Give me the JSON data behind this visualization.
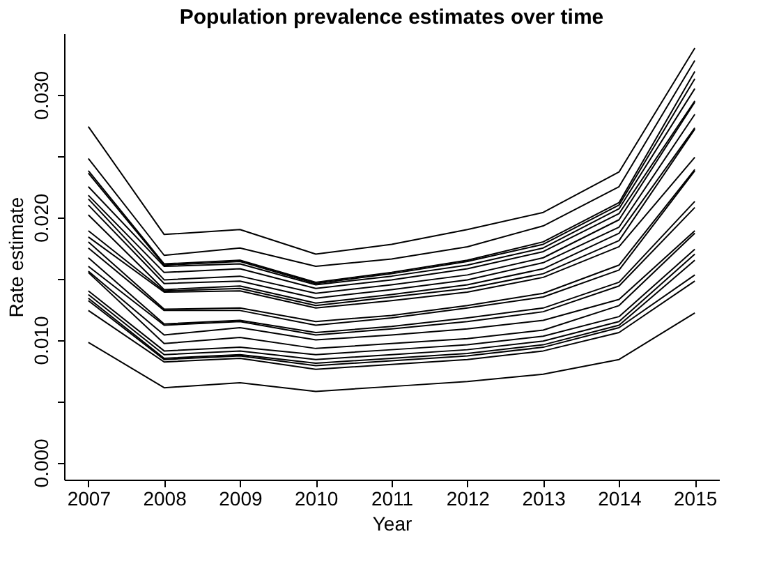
{
  "chart_data": {
    "type": "line",
    "title": "Population prevalence estimates over time",
    "xlabel": "Year",
    "ylabel": "Rate estimate",
    "x": [
      2007,
      2008,
      2009,
      2010,
      2011,
      2012,
      2013,
      2014,
      2015
    ],
    "xlim": [
      2006.68,
      2015.32
    ],
    "xticks": [
      2007,
      2008,
      2009,
      2010,
      2011,
      2012,
      2013,
      2014,
      2015
    ],
    "ylim": [
      -0.0014,
      0.035
    ],
    "yticks": [
      {
        "value": 0,
        "label": "0.000"
      },
      {
        "value": 0.005,
        "label": null
      },
      {
        "value": 0.01,
        "label": "0.010"
      },
      {
        "value": 0.015,
        "label": null
      },
      {
        "value": 0.02,
        "label": "0.020"
      },
      {
        "value": 0.025,
        "label": null
      },
      {
        "value": 0.03,
        "label": "0.030"
      }
    ],
    "grid": false,
    "legend": false,
    "marker": "none",
    "line_style": "solid",
    "series": [
      {
        "color": "#000000",
        "values": [
          0.0274,
          0.0186,
          0.019,
          0.017,
          0.0178,
          0.019,
          0.0204,
          0.0237,
          0.0338
        ]
      },
      {
        "color": "#000000",
        "values": [
          0.0248,
          0.0169,
          0.0175,
          0.016,
          0.0166,
          0.0176,
          0.0193,
          0.0225,
          0.0328
        ]
      },
      {
        "color": "#000000",
        "values": [
          0.0238,
          0.0162,
          0.0165,
          0.0147,
          0.0155,
          0.0165,
          0.018,
          0.0212,
          0.0319
        ]
      },
      {
        "color": "#000000",
        "values": [
          0.0236,
          0.0161,
          0.0164,
          0.0146,
          0.0154,
          0.0164,
          0.0178,
          0.021,
          0.0313
        ]
      },
      {
        "color": "#000000",
        "values": [
          0.0225,
          0.016,
          0.0162,
          0.0145,
          0.0152,
          0.0161,
          0.0175,
          0.0207,
          0.0305
        ]
      },
      {
        "color": "#000000",
        "values": [
          0.0218,
          0.0155,
          0.0158,
          0.0142,
          0.0149,
          0.0158,
          0.0172,
          0.0203,
          0.0295
        ]
      },
      {
        "color": "#000000",
        "values": [
          0.0215,
          0.0149,
          0.0152,
          0.0138,
          0.0145,
          0.0153,
          0.0167,
          0.0198,
          0.0294
        ]
      },
      {
        "color": "#000000",
        "values": [
          0.021,
          0.0146,
          0.0148,
          0.0134,
          0.0141,
          0.0149,
          0.0163,
          0.0192,
          0.0284
        ]
      },
      {
        "color": "#000000",
        "values": [
          0.0202,
          0.0141,
          0.0144,
          0.013,
          0.0137,
          0.0145,
          0.0158,
          0.0187,
          0.0273
        ]
      },
      {
        "color": "#000000",
        "values": [
          0.0189,
          0.014,
          0.0142,
          0.0128,
          0.0135,
          0.0142,
          0.0154,
          0.0181,
          0.0272
        ]
      },
      {
        "color": "#000000",
        "values": [
          0.0184,
          0.0139,
          0.014,
          0.0126,
          0.0132,
          0.0139,
          0.0151,
          0.0176,
          0.0249
        ]
      },
      {
        "color": "#000000",
        "values": [
          0.018,
          0.0125,
          0.0126,
          0.0115,
          0.012,
          0.0128,
          0.0138,
          0.0161,
          0.0239
        ]
      },
      {
        "color": "#000000",
        "values": [
          0.0175,
          0.0124,
          0.0124,
          0.0112,
          0.0118,
          0.0126,
          0.0135,
          0.0157,
          0.0238
        ]
      },
      {
        "color": "#000000",
        "values": [
          0.0167,
          0.0113,
          0.0116,
          0.0106,
          0.0111,
          0.0118,
          0.0126,
          0.0147,
          0.0213
        ]
      },
      {
        "color": "#000000",
        "values": [
          0.016,
          0.0112,
          0.0115,
          0.0104,
          0.0109,
          0.0115,
          0.0123,
          0.0144,
          0.0208
        ]
      },
      {
        "color": "#000000",
        "values": [
          0.0156,
          0.0104,
          0.011,
          0.01,
          0.0104,
          0.0109,
          0.0116,
          0.0133,
          0.0189
        ]
      },
      {
        "color": "#000000",
        "values": [
          0.0155,
          0.0097,
          0.0102,
          0.0093,
          0.0097,
          0.0101,
          0.0108,
          0.0128,
          0.0187
        ]
      },
      {
        "color": "#000000",
        "values": [
          0.014,
          0.0091,
          0.0094,
          0.0088,
          0.0092,
          0.0096,
          0.0103,
          0.0119,
          0.0174
        ]
      },
      {
        "color": "#000000",
        "values": [
          0.0137,
          0.0088,
          0.0091,
          0.0084,
          0.0088,
          0.0092,
          0.0099,
          0.0115,
          0.017
        ]
      },
      {
        "color": "#000000",
        "values": [
          0.0134,
          0.0085,
          0.0088,
          0.0081,
          0.0085,
          0.0089,
          0.0096,
          0.0112,
          0.0165
        ]
      },
      {
        "color": "#000000",
        "values": [
          0.0132,
          0.0084,
          0.0087,
          0.0079,
          0.0083,
          0.0087,
          0.0094,
          0.011,
          0.0153
        ]
      },
      {
        "color": "#000000",
        "values": [
          0.0124,
          0.0082,
          0.0085,
          0.0076,
          0.008,
          0.0084,
          0.0091,
          0.0106,
          0.0148
        ]
      },
      {
        "color": "#000000",
        "values": [
          0.0098,
          0.0061,
          0.0065,
          0.0058,
          0.0062,
          0.0066,
          0.0072,
          0.0084,
          0.0122
        ]
      }
    ]
  }
}
